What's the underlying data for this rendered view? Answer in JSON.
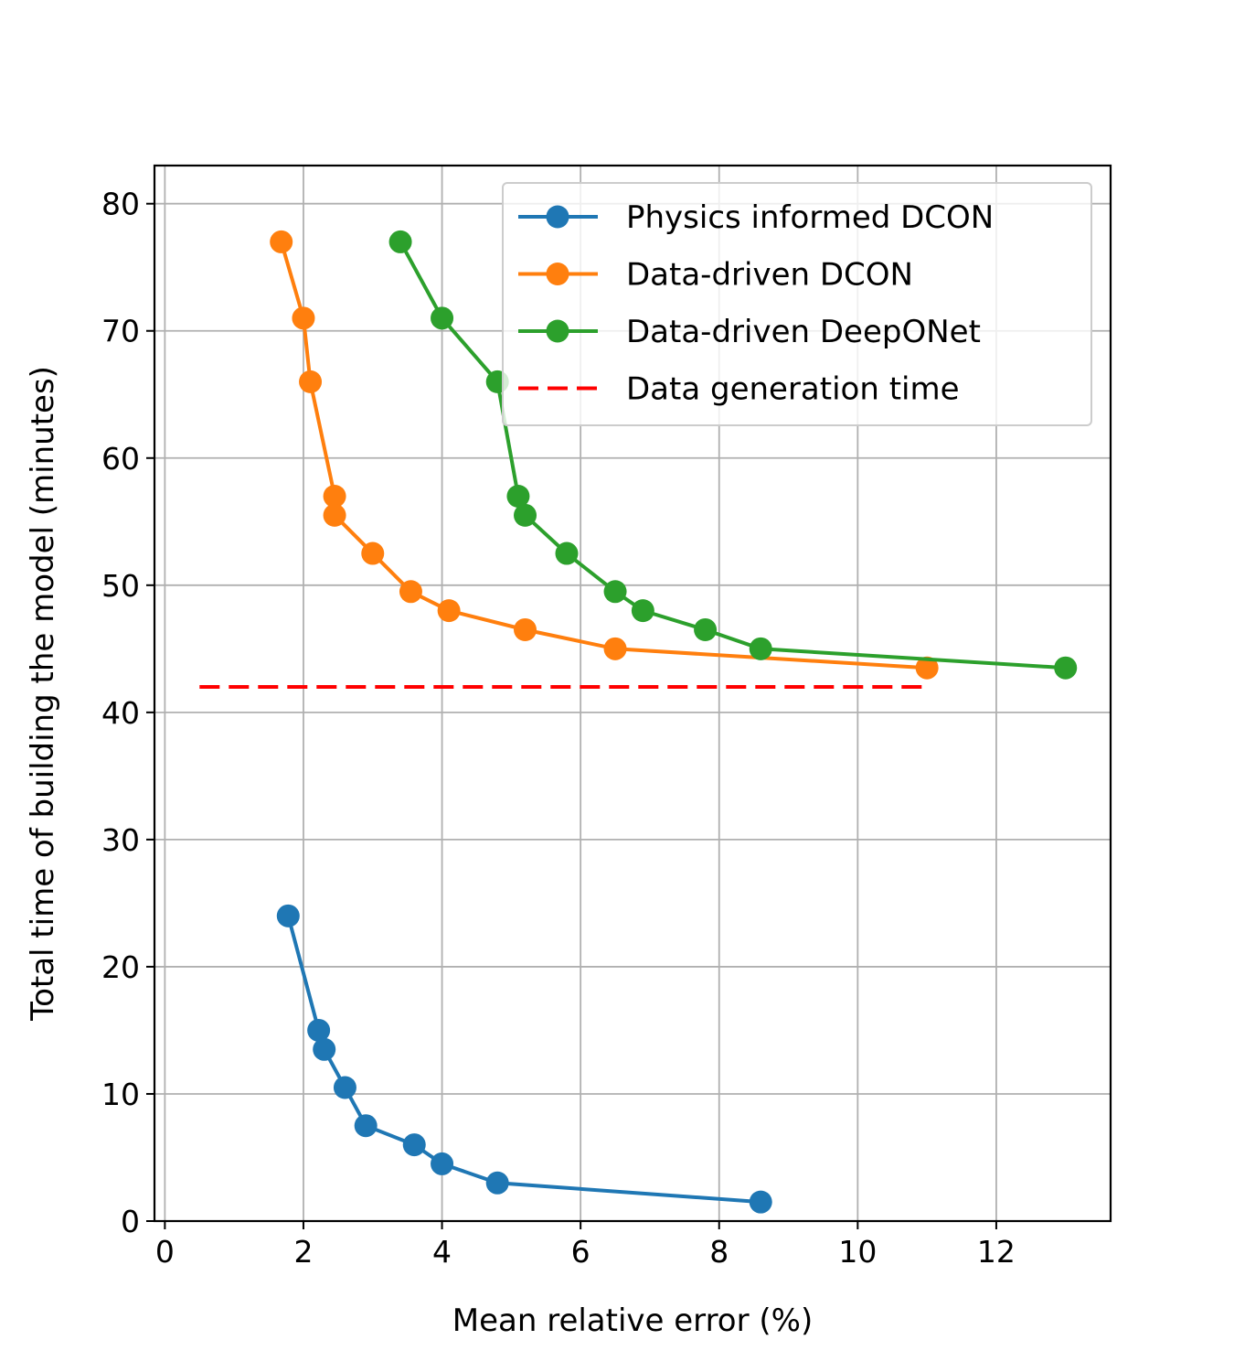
{
  "chart_data": {
    "type": "line",
    "title": "",
    "xlabel": "Mean relative error (%)",
    "ylabel": "Total time of building the model (minutes)",
    "xlim": [
      -0.15,
      13.65
    ],
    "ylim": [
      0,
      83
    ],
    "xticks": [
      0,
      2,
      4,
      6,
      8,
      10,
      12
    ],
    "yticks": [
      0,
      10,
      20,
      30,
      40,
      50,
      60,
      70,
      80
    ],
    "grid": true,
    "legend_position": "top-right",
    "series": [
      {
        "name": "Physics informed DCON",
        "color": "#1f77b4",
        "style": "solid-markers",
        "x": [
          1.78,
          2.22,
          2.3,
          2.6,
          2.9,
          3.6,
          4.0,
          4.8,
          8.6
        ],
        "y": [
          24,
          15,
          13.5,
          10.5,
          7.5,
          6,
          4.5,
          3,
          1.5
        ]
      },
      {
        "name": "Data-driven DCON",
        "color": "#ff7f0e",
        "style": "solid-markers",
        "x": [
          1.68,
          2.0,
          2.1,
          2.45,
          2.45,
          3.0,
          3.55,
          4.1,
          5.2,
          6.5,
          11.0
        ],
        "y": [
          77,
          71,
          66,
          57,
          55.5,
          52.5,
          49.5,
          48,
          46.5,
          45,
          43.5
        ]
      },
      {
        "name": "Data-driven DeepONet",
        "color": "#2ca02c",
        "style": "solid-markers",
        "x": [
          3.4,
          4.0,
          4.8,
          5.1,
          5.2,
          5.8,
          6.5,
          6.9,
          7.8,
          8.6,
          13.0
        ],
        "y": [
          77,
          71,
          66,
          57,
          55.5,
          52.5,
          49.5,
          48,
          46.5,
          45,
          43.5
        ]
      },
      {
        "name": "Data generation time",
        "color": "#ff0000",
        "style": "dashed",
        "x": [
          0.5,
          11.0
        ],
        "y": [
          42,
          42
        ]
      }
    ]
  }
}
